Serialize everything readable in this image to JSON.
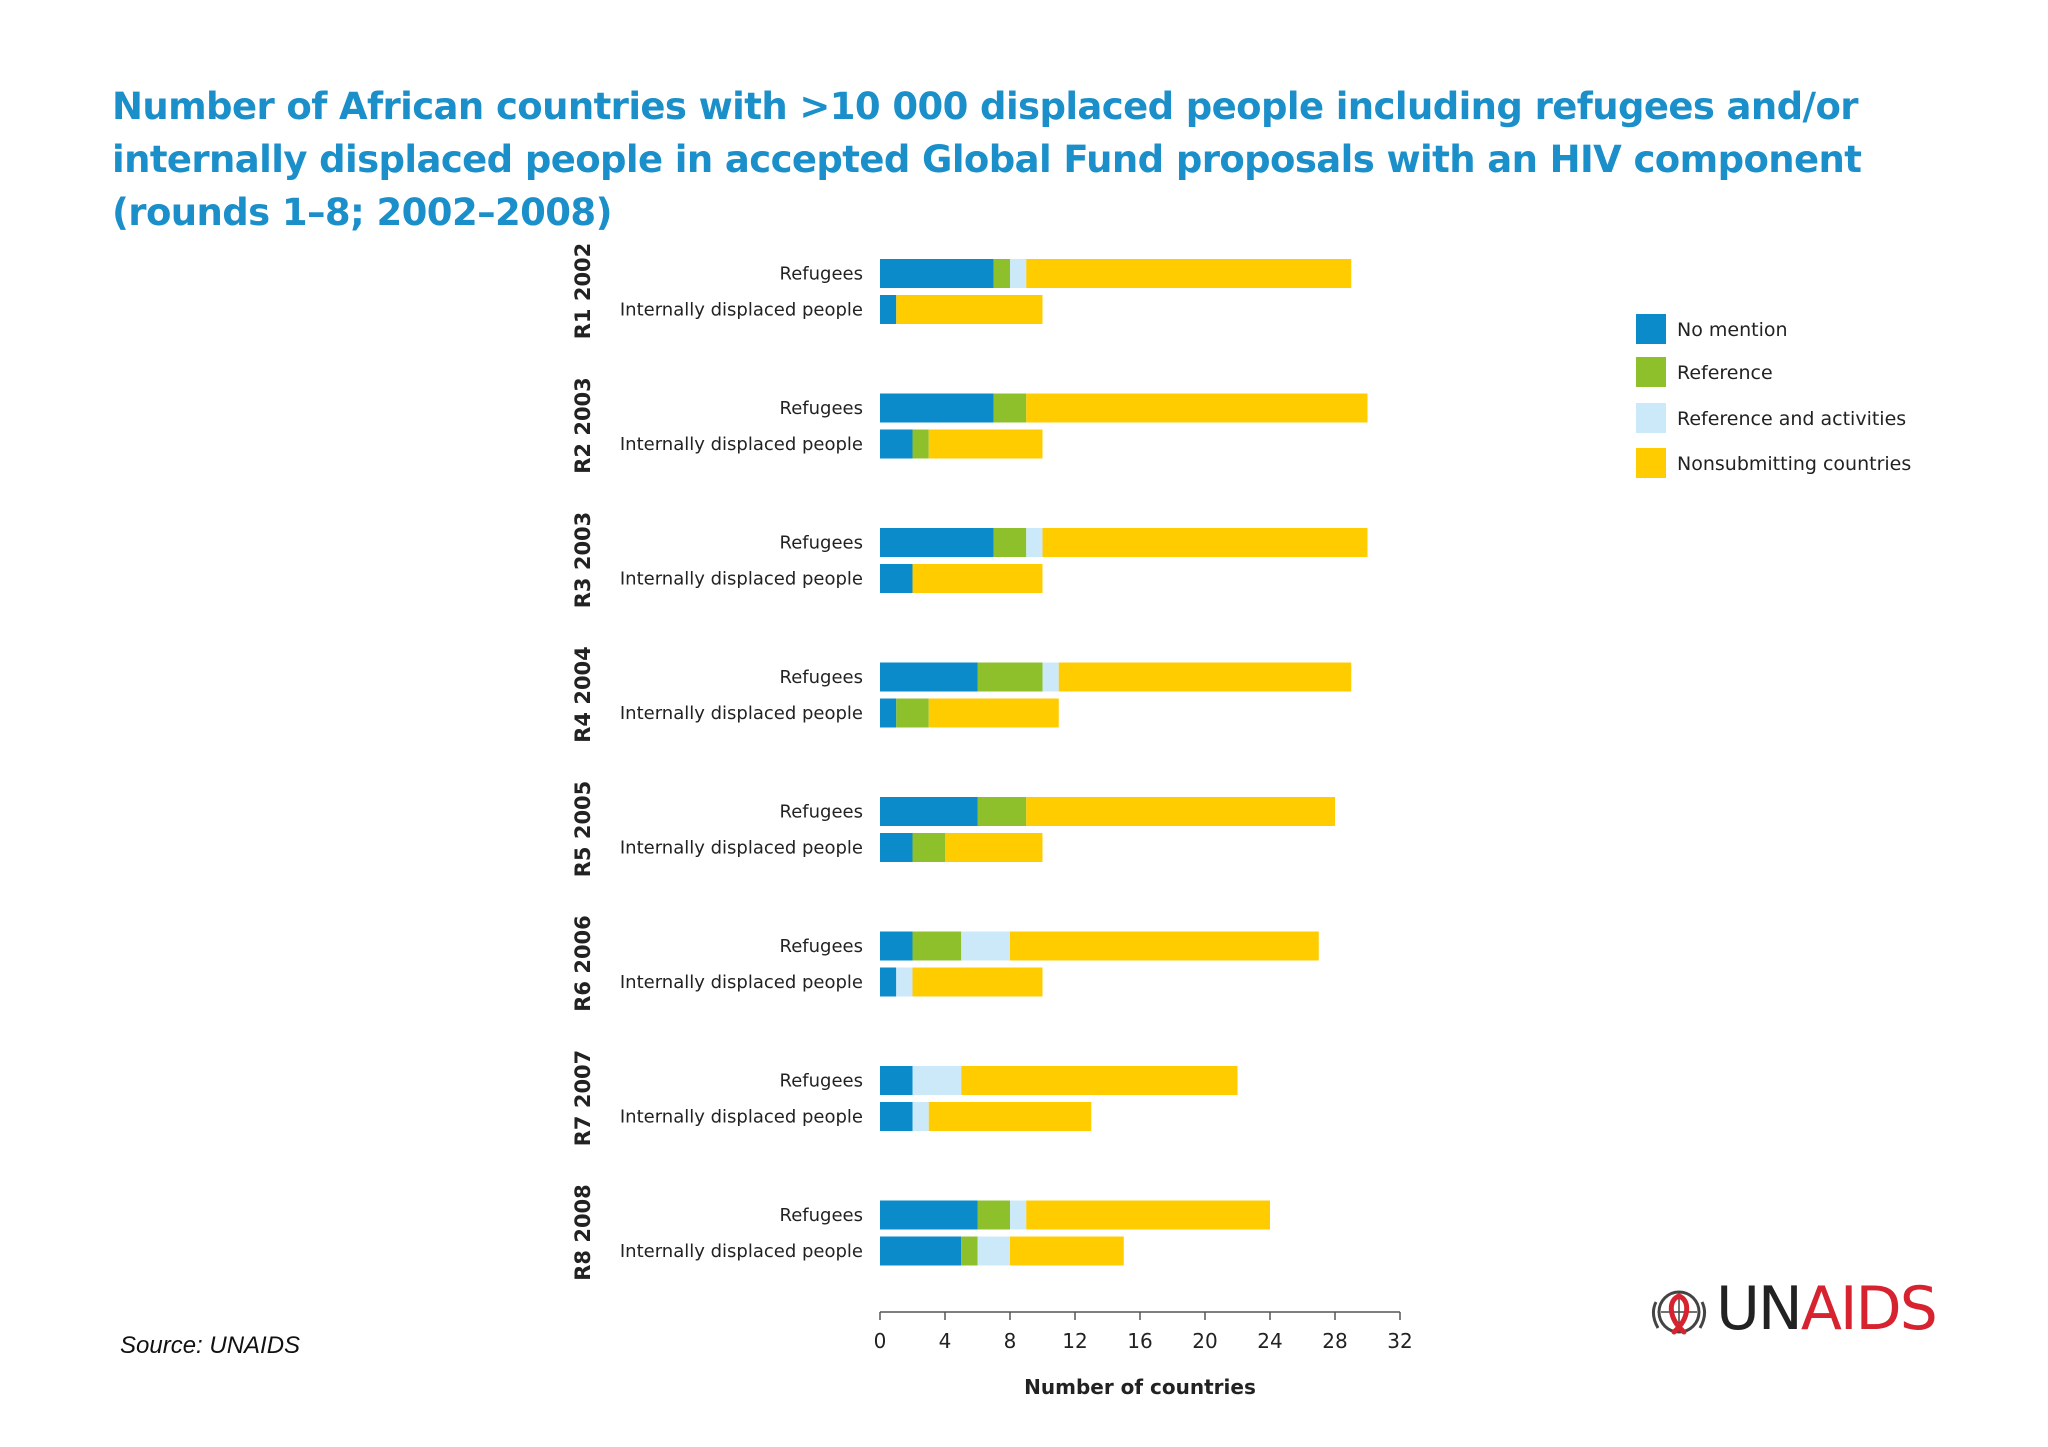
{
  "title": "Number of African countries with >10 000 displaced people including refugees and/or internally displaced people in accepted Global Fund proposals with an HIV component (rounds 1–8; 2002–2008)",
  "source": "Source: UNAIDS",
  "logo": {
    "un": "UN",
    "aids": "AIDS"
  },
  "colors": {
    "No mention": "#0b8bc9",
    "Reference": "#8dc02b",
    "Reference and activities": "#cce9f9",
    "Nonsubmitting countries": "#ffcc00"
  },
  "chart_data": {
    "type": "bar",
    "orientation": "horizontal",
    "stacked": true,
    "xlabel": "Number of countries",
    "xlim": [
      0,
      32
    ],
    "xticks": [
      0,
      4,
      8,
      12,
      16,
      20,
      24,
      28,
      32
    ],
    "legend_position": "top-right",
    "series_names": [
      "No mention",
      "Reference",
      "Reference and activities",
      "Nonsubmitting countries"
    ],
    "groups": [
      {
        "label": "R1 2002",
        "rows": [
          {
            "label": "Refugees",
            "values": [
              7,
              1,
              1,
              20
            ]
          },
          {
            "label": "Internally displaced people",
            "values": [
              1,
              0,
              0,
              9
            ]
          }
        ]
      },
      {
        "label": "R2 2003",
        "rows": [
          {
            "label": "Refugees",
            "values": [
              7,
              2,
              0,
              21
            ]
          },
          {
            "label": "Internally displaced people",
            "values": [
              2,
              1,
              0,
              7
            ]
          }
        ]
      },
      {
        "label": "R3 2003",
        "rows": [
          {
            "label": "Refugees",
            "values": [
              7,
              2,
              1,
              20
            ]
          },
          {
            "label": "Internally displaced people",
            "values": [
              2,
              0,
              0,
              8
            ]
          }
        ]
      },
      {
        "label": "R4 2004",
        "rows": [
          {
            "label": "Refugees",
            "values": [
              6,
              4,
              1,
              18
            ]
          },
          {
            "label": "Internally displaced people",
            "values": [
              1,
              2,
              0,
              8
            ]
          }
        ]
      },
      {
        "label": "R5 2005",
        "rows": [
          {
            "label": "Refugees",
            "values": [
              6,
              3,
              0,
              19
            ]
          },
          {
            "label": "Internally displaced people",
            "values": [
              2,
              2,
              0,
              6
            ]
          }
        ]
      },
      {
        "label": "R6 2006",
        "rows": [
          {
            "label": "Refugees",
            "values": [
              2,
              3,
              3,
              19
            ]
          },
          {
            "label": "Internally displaced people",
            "values": [
              1,
              0,
              1,
              8
            ]
          }
        ]
      },
      {
        "label": "R7 2007",
        "rows": [
          {
            "label": "Refugees",
            "values": [
              2,
              0,
              3,
              17
            ]
          },
          {
            "label": "Internally displaced people",
            "values": [
              2,
              0,
              1,
              10
            ]
          }
        ]
      },
      {
        "label": "R8 2008",
        "rows": [
          {
            "label": "Refugees",
            "values": [
              6,
              2,
              1,
              15
            ]
          },
          {
            "label": "Internally displaced people",
            "values": [
              5,
              1,
              2,
              7
            ]
          }
        ]
      }
    ]
  }
}
